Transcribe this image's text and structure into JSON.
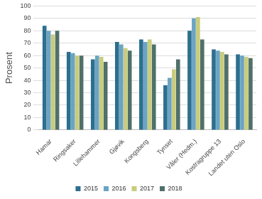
{
  "chart_data": {
    "type": "bar",
    "y_label": "Prosent",
    "categories": [
      "Hamar",
      "Ringsaker",
      "Lillehammer",
      "Gjøvik",
      "Kongsberg",
      "Tynset",
      "Våler (Hedm.)",
      "Kostragruppe 13",
      "Landet uten Oslo"
    ],
    "series": [
      {
        "name": "2015",
        "color": "#2c6f8e",
        "values": [
          84,
          63,
          57,
          71,
          73,
          36,
          80,
          65,
          61
        ]
      },
      {
        "name": "2016",
        "color": "#6ba4c2",
        "values": [
          80,
          62,
          60,
          69,
          71,
          42,
          90,
          64,
          60
        ]
      },
      {
        "name": "2017",
        "color": "#c9cc7c",
        "values": [
          77,
          60,
          59,
          66,
          73,
          49,
          91,
          63,
          59
        ]
      },
      {
        "name": "2018",
        "color": "#50706a",
        "values": [
          80,
          60,
          55,
          64,
          69,
          57,
          73,
          61,
          58
        ]
      }
    ],
    "ylim": [
      0,
      100
    ],
    "yticks": [
      0,
      10,
      20,
      30,
      40,
      50,
      60,
      70,
      80,
      90,
      100
    ],
    "grid": true,
    "legend": "bottom"
  }
}
